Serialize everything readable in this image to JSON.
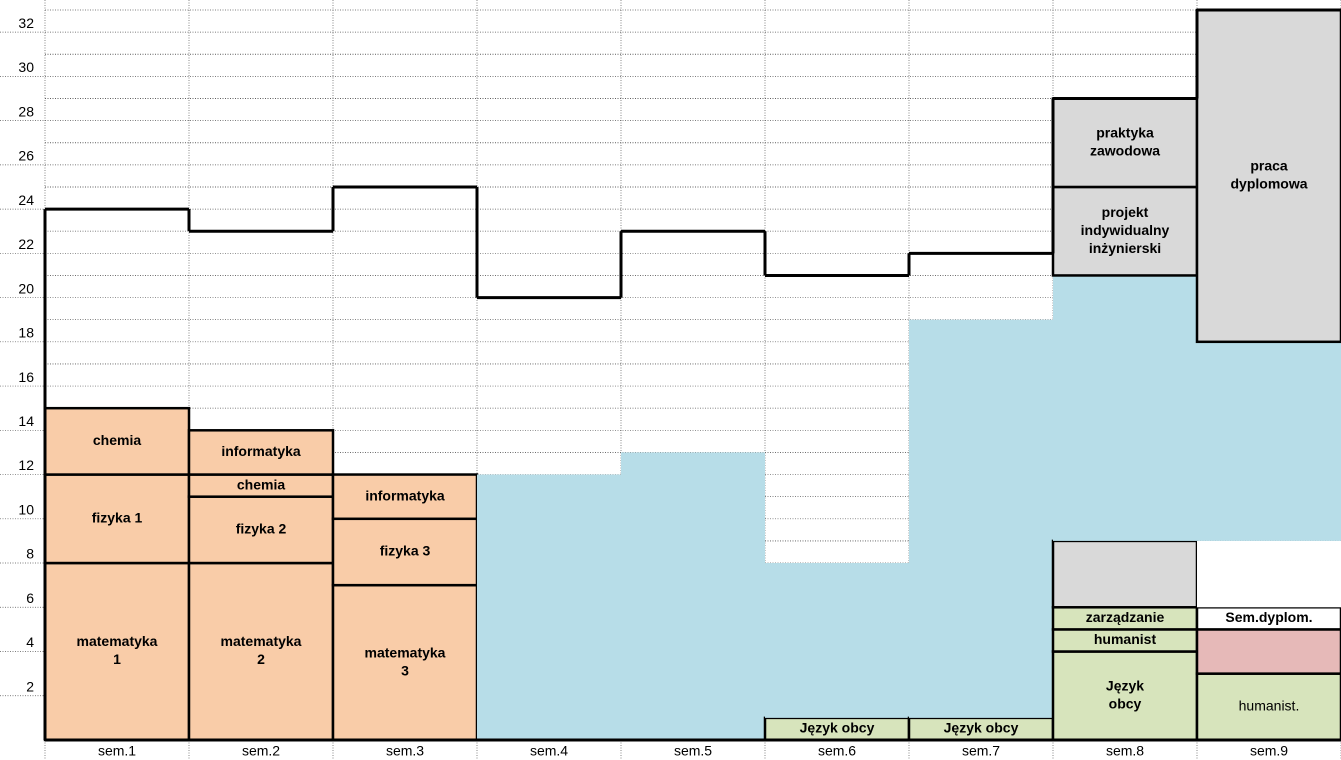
{
  "chart_data": {
    "type": "stacked_blocks",
    "categories": [
      "sem.1",
      "sem.2",
      "sem.3",
      "sem.4",
      "sem.5",
      "sem.6",
      "sem.7",
      "sem.8",
      "sem.9"
    ],
    "ylim": [
      0,
      33
    ],
    "yticks": [
      2,
      4,
      6,
      8,
      10,
      12,
      14,
      16,
      18,
      20,
      22,
      24,
      26,
      28,
      30,
      32
    ],
    "grid": true,
    "totals": [
      24,
      23,
      25,
      20,
      23,
      21,
      22,
      29,
      33
    ],
    "stacks": [
      [
        {
          "label": [
            "matematyka",
            "1"
          ],
          "value": 8,
          "color": "#f9cca8"
        },
        {
          "label": [
            "fizyka 1"
          ],
          "value": 4,
          "color": "#f9cca8"
        },
        {
          "label": [
            "chemia"
          ],
          "value": 3,
          "color": "#f9cca8"
        }
      ],
      [
        {
          "label": [
            "matematyka",
            "2"
          ],
          "value": 8,
          "color": "#f9cca8"
        },
        {
          "label": [
            "fizyka 2"
          ],
          "value": 3,
          "color": "#f9cca8"
        },
        {
          "label": [
            "chemia"
          ],
          "value": 1,
          "color": "#f9cca8"
        },
        {
          "label": [
            "informatyka"
          ],
          "value": 2,
          "color": "#f9cca8"
        }
      ],
      [
        {
          "label": [
            "matematyka",
            "3"
          ],
          "value": 7,
          "color": "#f9cca8"
        },
        {
          "label": [
            "fizyka 3"
          ],
          "value": 3,
          "color": "#f9cca8"
        },
        {
          "label": [
            "informatyka"
          ],
          "value": 2,
          "color": "#f9cca8"
        }
      ],
      [
        {
          "value": 12,
          "color": "#b7dde8"
        }
      ],
      [
        {
          "value": 13,
          "color": "#b7dde8"
        }
      ],
      [
        {
          "label": [
            "Język obcy"
          ],
          "value": 1,
          "color": "#d7e4bc"
        },
        {
          "value": 7,
          "color": "#b7dde8"
        }
      ],
      [
        {
          "label": [
            "Język obcy"
          ],
          "value": 1,
          "color": "#d7e4bc"
        },
        {
          "value": 18,
          "color": "#b7dde8"
        }
      ],
      [
        {
          "label": [
            "Język",
            "obcy"
          ],
          "value": 4,
          "color": "#d7e4bc"
        },
        {
          "label": [
            "humanist"
          ],
          "value": 1,
          "color": "#d7e4bc"
        },
        {
          "label": [
            "zarządzanie"
          ],
          "value": 1,
          "color": "#d7e4bc"
        },
        {
          "value": 3,
          "color": "#d9d9d9"
        },
        {
          "value": 12,
          "color": "#b7dde8"
        },
        {
          "label": [
            "projekt",
            "indywidualny",
            "inżynierski"
          ],
          "value": 4,
          "color": "#d9d9d9"
        },
        {
          "label": [
            "praktyka",
            "zawodowa"
          ],
          "value": 4,
          "color": "#d9d9d9"
        }
      ],
      [
        {
          "label": [
            "humanist."
          ],
          "value": 3,
          "color": "#d7e4bc",
          "bold": false
        },
        {
          "value": 2,
          "color": "#e6b9b8"
        },
        {
          "label": [
            "Sem.dyplom."
          ],
          "value": 1,
          "color": "#ffffff"
        },
        {
          "value": 3,
          "color": "#ffffff",
          "outline": false
        },
        {
          "value": 9,
          "color": "#b7dde8"
        },
        {
          "label": [
            "praca",
            "dyplomowa"
          ],
          "value": 15,
          "color": "#d9d9d9"
        }
      ]
    ]
  }
}
